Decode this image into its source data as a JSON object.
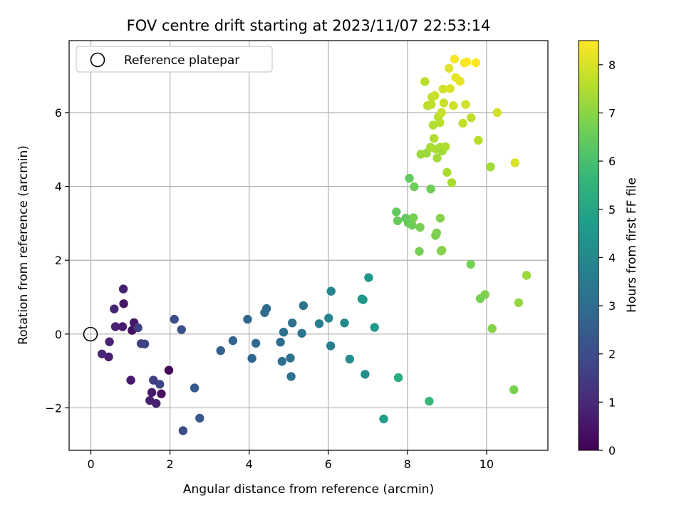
{
  "chart_data": {
    "type": "scatter",
    "title": "FOV centre drift starting at 2023/11/07 22:53:14",
    "xlabel": "Angular distance from reference (arcmin)",
    "ylabel": "Rotation from reference (arcmin)",
    "xlim": [
      -0.55,
      11.55
    ],
    "ylim": [
      -3.15,
      7.95
    ],
    "xticks": [
      0,
      2,
      4,
      6,
      8,
      10
    ],
    "yticks": [
      -2,
      0,
      2,
      4,
      6
    ],
    "xtick_labels": [
      "0",
      "2",
      "4",
      "6",
      "8",
      "10"
    ],
    "ytick_labels": [
      "−2",
      "0",
      "2",
      "4",
      "6"
    ],
    "grid": true,
    "legend": {
      "placement": "upper-left",
      "entries": [
        "Reference platepar"
      ]
    },
    "reference_point": {
      "x": 0,
      "y": 0
    },
    "colorbar": {
      "label": "Hours from first FF file",
      "colormap": "viridis",
      "range": [
        0,
        8.5
      ],
      "ticks": [
        0,
        1,
        2,
        3,
        4,
        5,
        6,
        7,
        8
      ],
      "tick_labels": [
        "0",
        "1",
        "2",
        "3",
        "4",
        "5",
        "6",
        "7",
        "8"
      ],
      "stops": [
        "#440154",
        "#482878",
        "#3e4989",
        "#31688e",
        "#26828e",
        "#1f9e89",
        "#35b779",
        "#6ece58",
        "#b5de2b",
        "#fde725"
      ]
    },
    "series": [
      {
        "x": [
          1.97,
          1.78,
          1.54,
          1.65,
          1.49,
          1.01,
          0.45,
          0.28,
          0.47,
          0.62,
          0.8,
          0.59,
          1.04,
          1.09,
          0.83,
          1.19,
          1.27,
          1.36,
          1.58,
          1.74,
          2.11,
          2.29,
          0.82
        ],
        "y": [
          -0.98,
          -1.62,
          -1.58,
          -1.88,
          -1.8,
          -1.25,
          -0.62,
          -0.54,
          -0.21,
          0.2,
          0.2,
          0.68,
          0.1,
          0.31,
          0.82,
          0.17,
          -0.26,
          -0.27,
          -1.25,
          -1.36,
          0.4,
          0.12,
          1.22
        ],
        "hours": [
          0.1,
          0.35,
          0.55,
          0.75,
          0.7,
          0.6,
          0.7,
          0.9,
          0.8,
          0.8,
          0.6,
          0.9,
          0.4,
          0.5,
          0.5,
          1.6,
          1.6,
          1.7,
          1.6,
          1.7,
          2.0,
          2.1,
          0.8
        ],
        "color_by": "hours"
      },
      {
        "x": [
          2.33,
          2.62,
          2.75,
          3.28,
          3.59,
          3.96,
          4.07,
          4.17,
          4.39,
          4.44,
          4.79,
          4.83,
          4.87,
          5.04,
          5.06,
          5.09,
          5.33,
          5.37,
          5.77,
          6.01,
          6.06,
          6.07,
          6.41,
          6.54,
          6.85,
          6.88,
          6.93,
          7.02,
          7.17
        ],
        "y": [
          -2.62,
          -1.46,
          -2.28,
          -0.45,
          -0.18,
          0.4,
          -0.66,
          -0.25,
          0.58,
          0.69,
          -0.22,
          -0.74,
          0.05,
          -0.65,
          -1.15,
          0.3,
          0.02,
          0.77,
          0.28,
          0.43,
          -0.32,
          1.16,
          0.3,
          -0.68,
          0.95,
          0.93,
          -1.09,
          1.53,
          0.18
        ],
        "hours": [
          2.0,
          2.4,
          2.3,
          2.6,
          2.7,
          2.8,
          2.8,
          2.9,
          2.9,
          3.0,
          3.0,
          3.1,
          3.1,
          3.2,
          3.2,
          3.2,
          3.3,
          3.3,
          3.6,
          3.8,
          3.7,
          3.8,
          4.0,
          4.1,
          4.4,
          4.5,
          4.2,
          4.5,
          4.6
        ],
        "color_by": "hours"
      },
      {
        "x": [
          7.4,
          7.77,
          7.72,
          7.75,
          7.96,
          8.02,
          8.05,
          8.12,
          8.17,
          8.15,
          8.3,
          8.32,
          8.55,
          8.59,
          8.71,
          8.74,
          8.83,
          8.85,
          8.87,
          9.6,
          9.84,
          9.96,
          10.14,
          10.69,
          10.81,
          11.01
        ],
        "y": [
          -2.3,
          -1.18,
          3.31,
          3.07,
          3.14,
          3.01,
          4.22,
          2.95,
          3.99,
          3.15,
          2.24,
          2.89,
          -1.82,
          3.93,
          2.67,
          2.74,
          3.14,
          2.25,
          2.27,
          1.89,
          0.96,
          1.07,
          0.15,
          -1.51,
          0.85,
          1.59
        ],
        "hours": [
          4.8,
          5.2,
          6.4,
          6.5,
          6.4,
          6.5,
          6.4,
          6.6,
          6.6,
          6.7,
          6.7,
          6.7,
          5.7,
          6.6,
          6.8,
          6.8,
          6.9,
          6.9,
          6.9,
          6.7,
          6.7,
          6.8,
          6.9,
          6.8,
          7.1,
          7.2
        ],
        "color_by": "hours"
      },
      {
        "x": [
          8.34,
          8.44,
          8.48,
          8.51,
          8.58,
          8.6,
          8.62,
          8.65,
          8.67,
          8.69,
          8.72,
          8.75,
          8.78,
          8.82,
          8.83,
          8.86,
          8.88,
          8.9,
          8.92,
          8.96,
          9.0,
          9.05,
          9.08,
          9.12,
          9.16,
          9.19,
          9.22,
          9.33,
          9.4,
          9.44,
          9.47,
          9.5,
          9.61,
          9.73,
          9.79,
          10.1,
          10.27,
          10.72
        ],
        "y": [
          4.87,
          6.84,
          4.9,
          6.19,
          5.06,
          6.22,
          6.42,
          5.66,
          5.3,
          6.46,
          5.01,
          4.77,
          5.88,
          5.73,
          5.06,
          6.0,
          4.96,
          6.64,
          6.26,
          5.08,
          4.38,
          7.2,
          6.65,
          4.1,
          6.19,
          7.45,
          6.95,
          6.85,
          5.71,
          7.35,
          6.22,
          7.37,
          5.86,
          7.35,
          5.25,
          4.53,
          6.0,
          4.64
        ],
        "hours": [
          7.2,
          7.6,
          7.2,
          7.6,
          7.4,
          7.7,
          7.7,
          7.5,
          7.5,
          7.8,
          7.4,
          7.3,
          7.6,
          7.6,
          7.4,
          7.8,
          7.3,
          7.9,
          7.8,
          7.5,
          7.4,
          8.1,
          8.0,
          7.4,
          7.9,
          8.4,
          8.2,
          8.2,
          7.7,
          8.4,
          7.9,
          8.5,
          7.7,
          8.5,
          7.6,
          7.3,
          7.9,
          8.0
        ],
        "color_by": "hours"
      }
    ]
  }
}
